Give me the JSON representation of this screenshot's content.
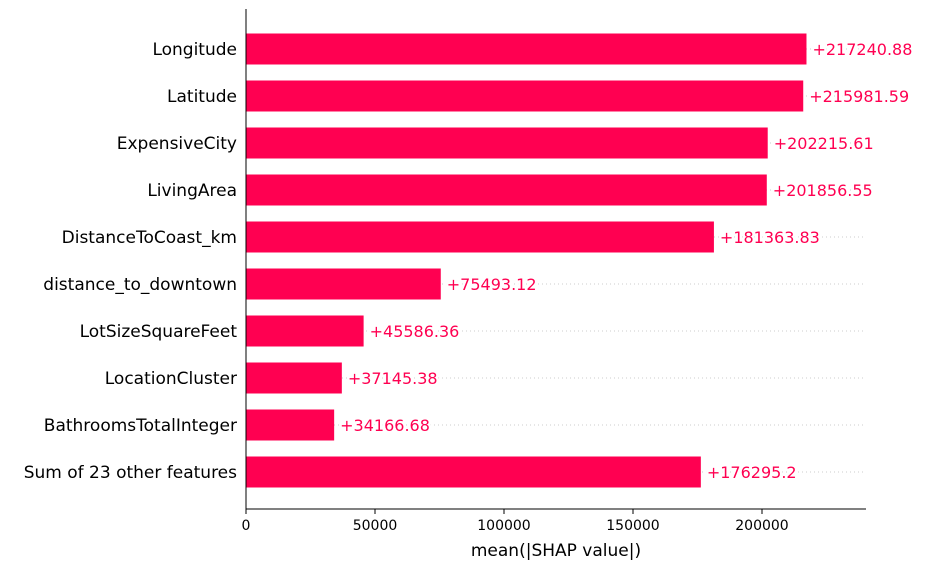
{
  "chart_data": {
    "type": "bar",
    "orientation": "horizontal",
    "title": "",
    "xlabel": "mean(|SHAP value|)",
    "ylabel": "",
    "xlim": [
      0,
      240000
    ],
    "grid": false,
    "legend": "none",
    "bar_color": "#ff0051",
    "label_color": "#ff0051",
    "categories": [
      "Longitude",
      "Latitude",
      "ExpensiveCity",
      "LivingArea",
      "DistanceToCoast_km",
      "distance_to_downtown",
      "LotSizeSquareFeet",
      "LocationCluster",
      "BathroomsTotalInteger",
      "Sum of 23 other features"
    ],
    "values": [
      217240.88,
      215981.59,
      202215.61,
      201856.55,
      181363.83,
      75493.12,
      45586.36,
      37145.38,
      34166.68,
      176295.2
    ],
    "value_labels": [
      "+217240.88",
      "+215981.59",
      "+202215.61",
      "+201856.55",
      "+181363.83",
      "+75493.12",
      "+45586.36",
      "+37145.38",
      "+34166.68",
      "+176295.2"
    ],
    "x_ticks": [
      0,
      50000,
      100000,
      150000,
      200000
    ],
    "x_tick_labels": [
      "0",
      "50000",
      "100000",
      "150000",
      "200000"
    ]
  }
}
